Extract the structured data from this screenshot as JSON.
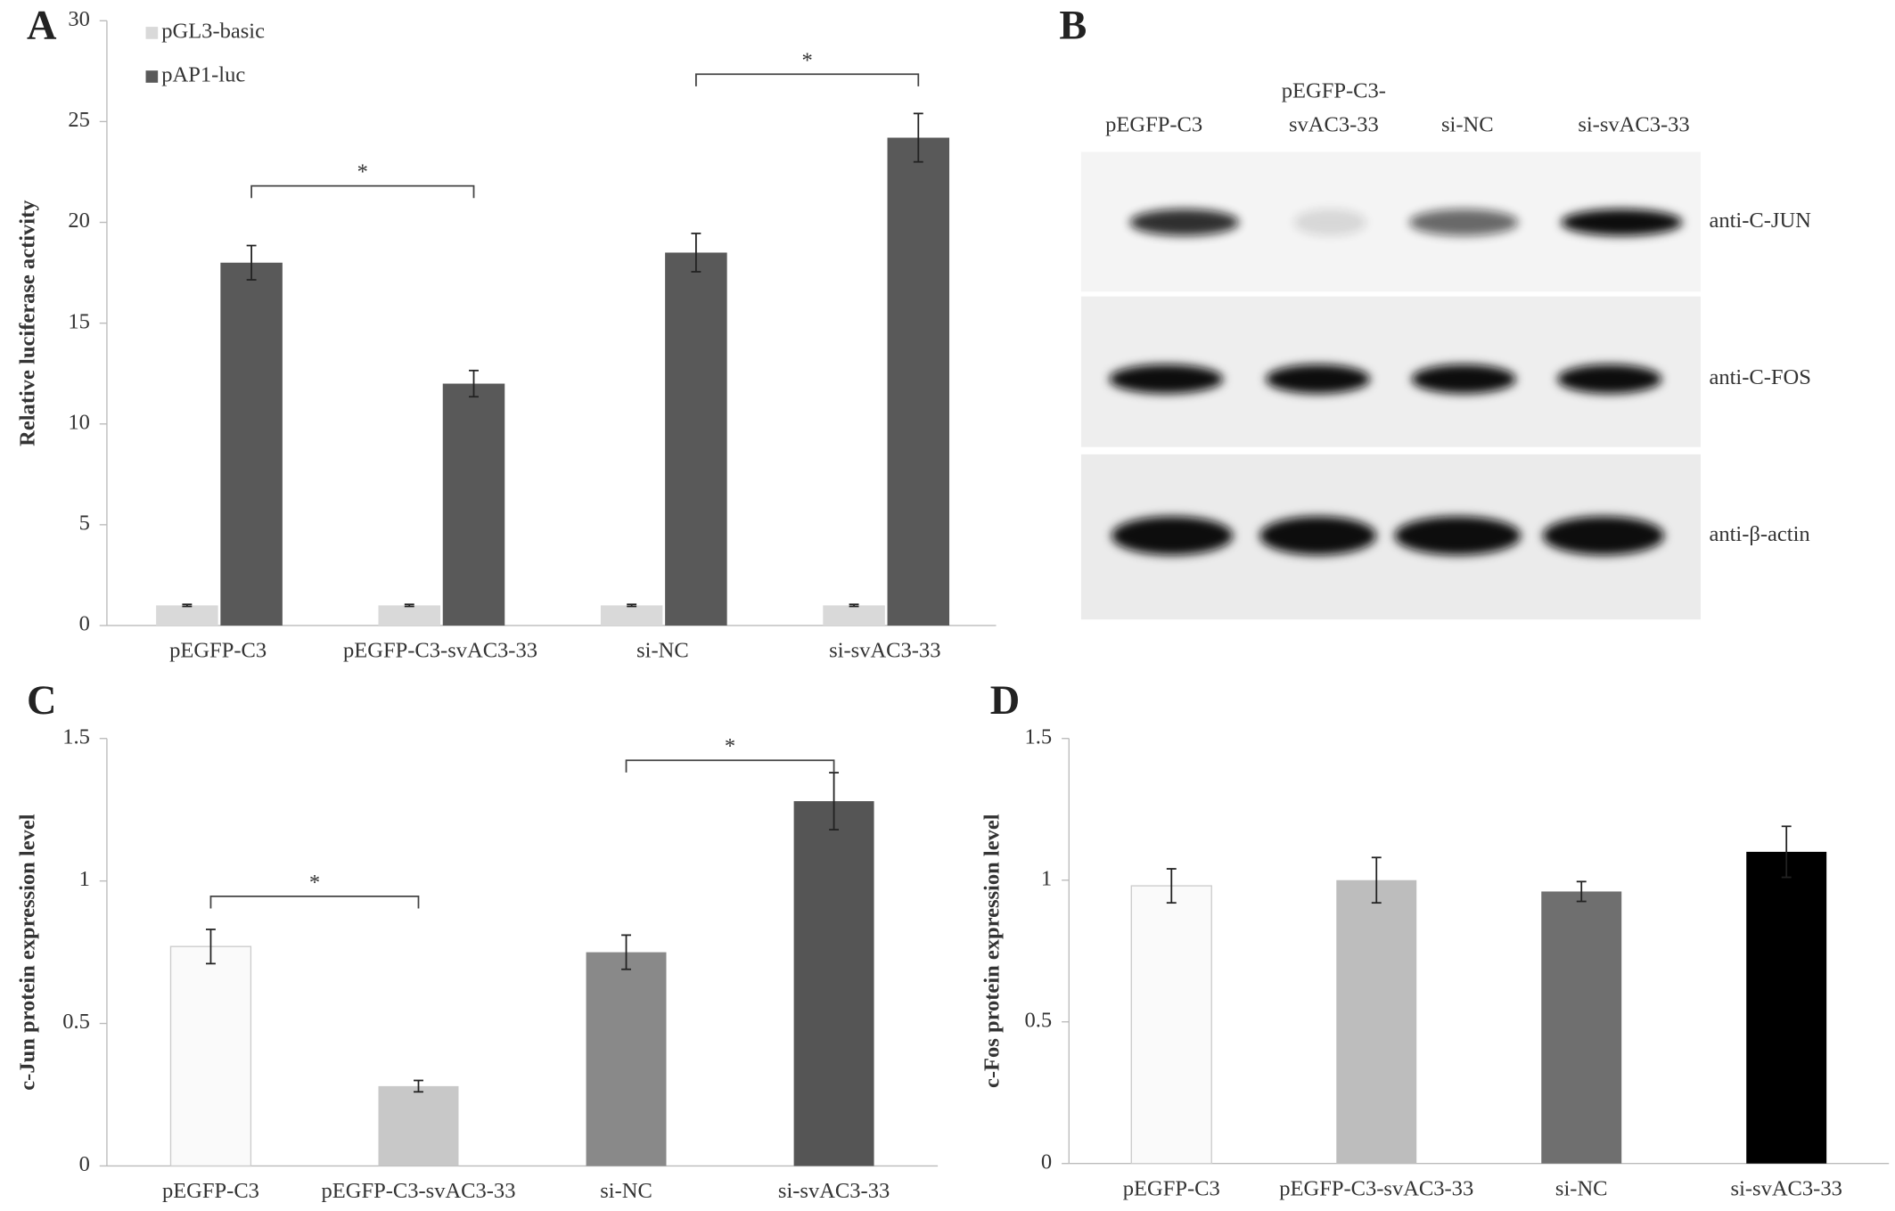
{
  "chart_data": [
    {
      "type": "bar",
      "panel_label": "A",
      "y_label": "Relative luciferase activity",
      "categories": [
        "pEGFP-C3",
        "pEGFP-C3-svAC3-33",
        "si-NC",
        "si-svAC3-33"
      ],
      "series": [
        {
          "name": "pGL3-basic",
          "color": "#d9d9d9",
          "values": [
            1,
            1,
            1,
            1
          ],
          "errors": [
            0.05,
            0.05,
            0.05,
            0.05
          ]
        },
        {
          "name": "pAP1-luc",
          "color": "#595959",
          "values": [
            18,
            12,
            18.5,
            24.2
          ],
          "errors": [
            0.85,
            0.65,
            0.95,
            1.2
          ]
        }
      ],
      "ylim": [
        0,
        30
      ],
      "yticks": [
        0,
        5,
        10,
        15,
        20,
        25,
        30
      ],
      "annotations": [
        "*",
        "*"
      ]
    },
    {
      "type": "bar",
      "panel_label": "C",
      "y_label": "c-Jun protein expression level",
      "categories": [
        "pEGFP-C3",
        "pEGFP-C3-svAC3-33",
        "si-NC",
        "si-svAC3-33"
      ],
      "values": [
        0.77,
        0.28,
        0.75,
        1.28
      ],
      "errors": [
        0.06,
        0.02,
        0.06,
        0.1
      ],
      "colors": [
        "#fafafa",
        "#c8c8c8",
        "#898989",
        "#555555"
      ],
      "ylim": [
        0,
        1.5
      ],
      "yticks": [
        0,
        0.5,
        1,
        1.5
      ],
      "annotations": [
        "*",
        "*"
      ]
    },
    {
      "type": "bar",
      "panel_label": "D",
      "y_label": "c-Fos protein expression level",
      "categories": [
        "pEGFP-C3",
        "pEGFP-C3-svAC3-33",
        "si-NC",
        "si-svAC3-33"
      ],
      "values": [
        0.98,
        1.0,
        0.96,
        1.1
      ],
      "errors": [
        0.06,
        0.08,
        0.035,
        0.09
      ],
      "colors": [
        "#fafafa",
        "#bdbdbd",
        "#6f6f6f",
        "#000000"
      ],
      "ylim": [
        0,
        1.5
      ],
      "yticks": [
        0,
        0.5,
        1,
        1.5
      ]
    }
  ],
  "blot": {
    "panel_label": "B",
    "lanes": [
      [
        "pEGFP-C3"
      ],
      [
        "pEGFP-C3-",
        "svAC3-33"
      ],
      [
        "si-NC"
      ],
      [
        "si-svAC3-33"
      ]
    ],
    "antibodies": [
      "anti-C-JUN",
      "anti-C-FOS",
      "anti-β-actin"
    ]
  }
}
